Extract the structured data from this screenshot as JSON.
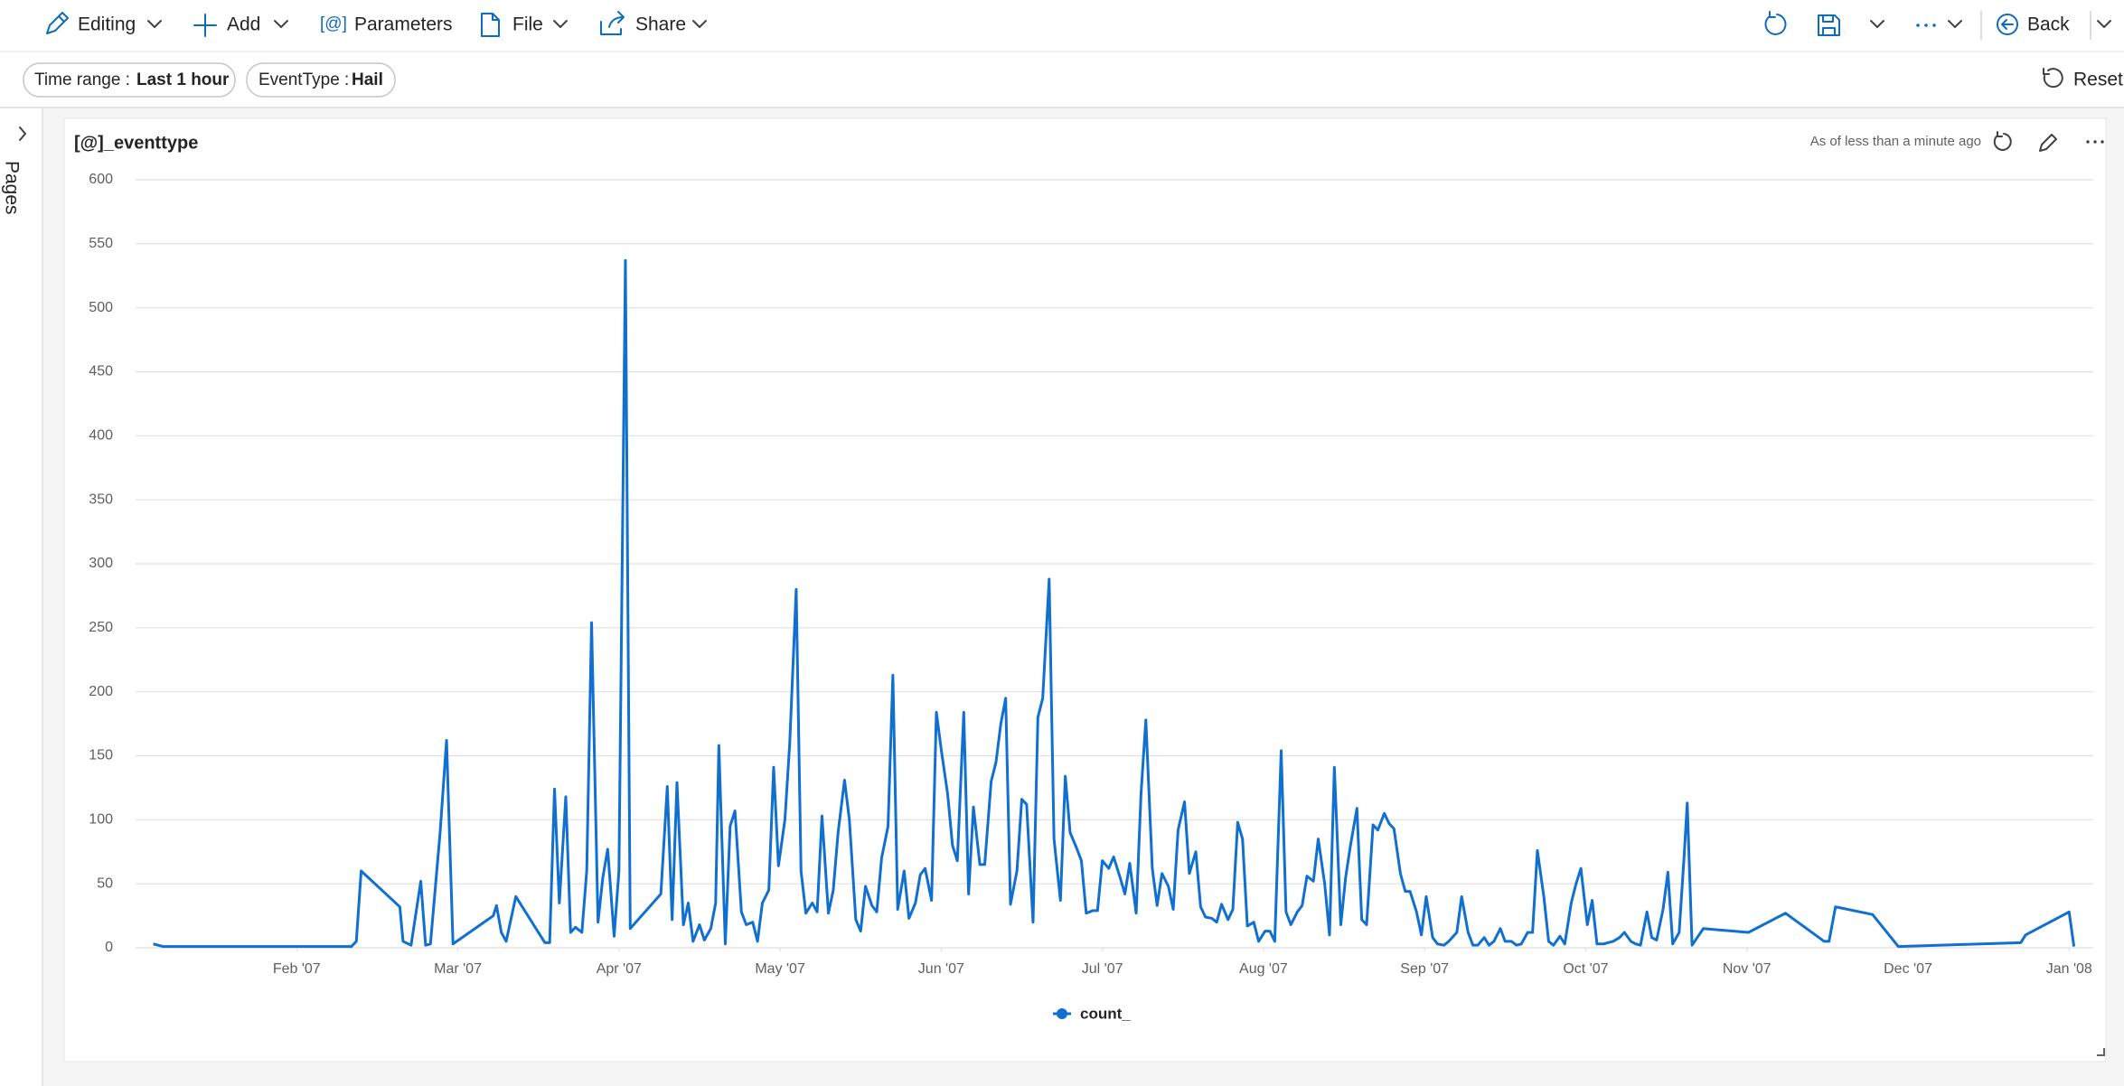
{
  "toolbar": {
    "editing": "Editing",
    "add": "Add",
    "parameters_icon": "[@]",
    "parameters": "Parameters",
    "file": "File",
    "share": "Share",
    "back": "Back"
  },
  "filters": [
    {
      "label": "Time range :",
      "value": "Last 1 hour"
    },
    {
      "label": "EventType :",
      "value": "Hail"
    }
  ],
  "reset": "Reset",
  "sidebar": "Pages",
  "tile": {
    "title": "[@]_eventtype",
    "status": "As of less than a minute ago"
  },
  "chart_data": {
    "type": "line",
    "x": [
      0.11,
      0.17,
      1.34,
      1.37,
      1.4,
      1.64,
      1.66,
      1.71,
      1.77,
      1.8,
      1.83,
      1.89,
      1.93,
      1.97,
      2.22,
      2.24,
      2.27,
      2.3,
      2.36,
      2.54,
      2.57,
      2.6,
      2.63,
      2.67,
      2.7,
      2.73,
      2.77,
      2.8,
      2.83,
      2.87,
      2.9,
      2.93,
      2.97,
      3.0,
      3.04,
      3.07,
      3.26,
      3.3,
      3.33,
      3.36,
      3.4,
      3.43,
      3.46,
      3.5,
      3.53,
      3.57,
      3.6,
      3.62,
      3.66,
      3.69,
      3.72,
      3.76,
      3.79,
      3.83,
      3.86,
      3.89,
      3.93,
      3.96,
      3.99,
      4.03,
      4.06,
      4.1,
      4.13,
      4.16,
      4.2,
      4.23,
      4.26,
      4.3,
      4.33,
      4.36,
      4.4,
      4.43,
      4.47,
      4.5,
      4.53,
      4.57,
      4.6,
      4.63,
      4.67,
      4.7,
      4.73,
      4.77,
      4.8,
      4.84,
      4.87,
      4.9,
      4.94,
      4.97,
      5.0,
      5.04,
      5.07,
      5.1,
      5.14,
      5.17,
      5.2,
      5.24,
      5.27,
      5.31,
      5.34,
      5.37,
      5.4,
      5.43,
      5.47,
      5.5,
      5.53,
      5.57,
      5.6,
      5.63,
      5.67,
      5.7,
      5.74,
      5.77,
      5.8,
      5.84,
      5.87,
      5.9,
      5.94,
      5.97,
      6.0,
      6.04,
      6.07,
      6.11,
      6.14,
      6.17,
      6.21,
      6.24,
      6.27,
      6.31,
      6.34,
      6.37,
      6.41,
      6.44,
      6.47,
      6.51,
      6.54,
      6.58,
      6.61,
      6.64,
      6.68,
      6.71,
      6.74,
      6.78,
      6.81,
      6.84,
      6.87,
      6.9,
      6.94,
      6.97,
      7.01,
      7.04,
      7.07,
      7.11,
      7.14,
      7.17,
      7.21,
      7.24,
      7.27,
      7.31,
      7.34,
      7.38,
      7.41,
      7.44,
      7.48,
      7.51,
      7.54,
      7.58,
      7.61,
      7.64,
      7.68,
      7.71,
      7.75,
      7.78,
      7.81,
      7.85,
      7.88,
      7.91,
      7.95,
      7.98,
      8.01,
      8.05,
      8.08,
      8.12,
      8.15,
      8.2,
      8.23,
      8.27,
      8.3,
      8.33,
      8.37,
      8.4,
      8.43,
      8.47,
      8.5,
      8.54,
      8.57,
      8.6,
      8.64,
      8.67,
      8.7,
      8.74,
      8.77,
      8.8,
      8.84,
      8.87,
      8.91,
      8.94,
      8.97,
      9.01,
      9.04,
      9.07,
      9.11,
      9.14,
      9.17,
      9.21,
      9.24,
      9.28,
      9.31,
      9.34,
      9.38,
      9.41,
      9.44,
      9.48,
      9.51,
      9.54,
      9.58,
      9.61,
      9.63,
      9.66,
      9.73,
      10.01,
      10.24,
      10.48,
      10.51,
      10.55,
      10.78,
      10.94,
      11.7,
      11.73,
      12.0,
      12.03
    ],
    "series": [
      {
        "name": "count_",
        "color": "#1170cf",
        "values": [
          3,
          1,
          1,
          5,
          60,
          32,
          5,
          2,
          52,
          2,
          3,
          90,
          162,
          3,
          25,
          33,
          12,
          5,
          40,
          4,
          4,
          124,
          35,
          118,
          12,
          16,
          12,
          60,
          254,
          20,
          55,
          77,
          9,
          60,
          537,
          15,
          42,
          126,
          22,
          129,
          18,
          35,
          5,
          18,
          6,
          15,
          35,
          158,
          3,
          95,
          107,
          28,
          18,
          20,
          5,
          35,
          45,
          141,
          64,
          100,
          160,
          280,
          60,
          27,
          35,
          28,
          103,
          27,
          45,
          90,
          131,
          100,
          22,
          13,
          48,
          33,
          28,
          70,
          95,
          213,
          30,
          60,
          23,
          35,
          57,
          62,
          37,
          184,
          155,
          120,
          80,
          68,
          184,
          42,
          110,
          65,
          65,
          130,
          145,
          175,
          195,
          34,
          60,
          116,
          112,
          20,
          180,
          195,
          288,
          85,
          37,
          134,
          90,
          78,
          68,
          27,
          29,
          29,
          68,
          62,
          71,
          55,
          42,
          66,
          27,
          120,
          178,
          62,
          33,
          58,
          48,
          30,
          92,
          114,
          58,
          75,
          32,
          24,
          23,
          20,
          34,
          22,
          30,
          98,
          85,
          17,
          20,
          5,
          13,
          13,
          5,
          154,
          28,
          18,
          28,
          33,
          56,
          52,
          85,
          50,
          10,
          141,
          18,
          55,
          80,
          109,
          22,
          18,
          96,
          92,
          105,
          97,
          93,
          58,
          44,
          44,
          28,
          10,
          40,
          8,
          3,
          2,
          5,
          12,
          40,
          12,
          2,
          2,
          8,
          2,
          5,
          15,
          5,
          5,
          2,
          3,
          12,
          12,
          76,
          40,
          5,
          2,
          9,
          3,
          35,
          50,
          62,
          18,
          37,
          3,
          3,
          4,
          5,
          8,
          12,
          5,
          3,
          2,
          28,
          8,
          6,
          30,
          59,
          3,
          12,
          70,
          113,
          2,
          15,
          12,
          27,
          5,
          5,
          32,
          26,
          1,
          4,
          10,
          28,
          1
        ]
      }
    ],
    "xlim": [
      0,
      12.15
    ],
    "xticks": [
      {
        "value": 1,
        "label": "Feb '07"
      },
      {
        "value": 2,
        "label": "Mar '07"
      },
      {
        "value": 3,
        "label": "Apr '07"
      },
      {
        "value": 4,
        "label": "May '07"
      },
      {
        "value": 5,
        "label": "Jun '07"
      },
      {
        "value": 6,
        "label": "Jul '07"
      },
      {
        "value": 7,
        "label": "Aug '07"
      },
      {
        "value": 8,
        "label": "Sep '07"
      },
      {
        "value": 9,
        "label": "Oct '07"
      },
      {
        "value": 10,
        "label": "Nov '07"
      },
      {
        "value": 11,
        "label": "Dec '07"
      },
      {
        "value": 12,
        "label": "Jan '08"
      }
    ],
    "ylim": [
      0,
      600
    ],
    "yticks": [
      0,
      50,
      100,
      150,
      200,
      250,
      300,
      350,
      400,
      450,
      500,
      550,
      600
    ],
    "grid": true,
    "legend": "bottom"
  }
}
